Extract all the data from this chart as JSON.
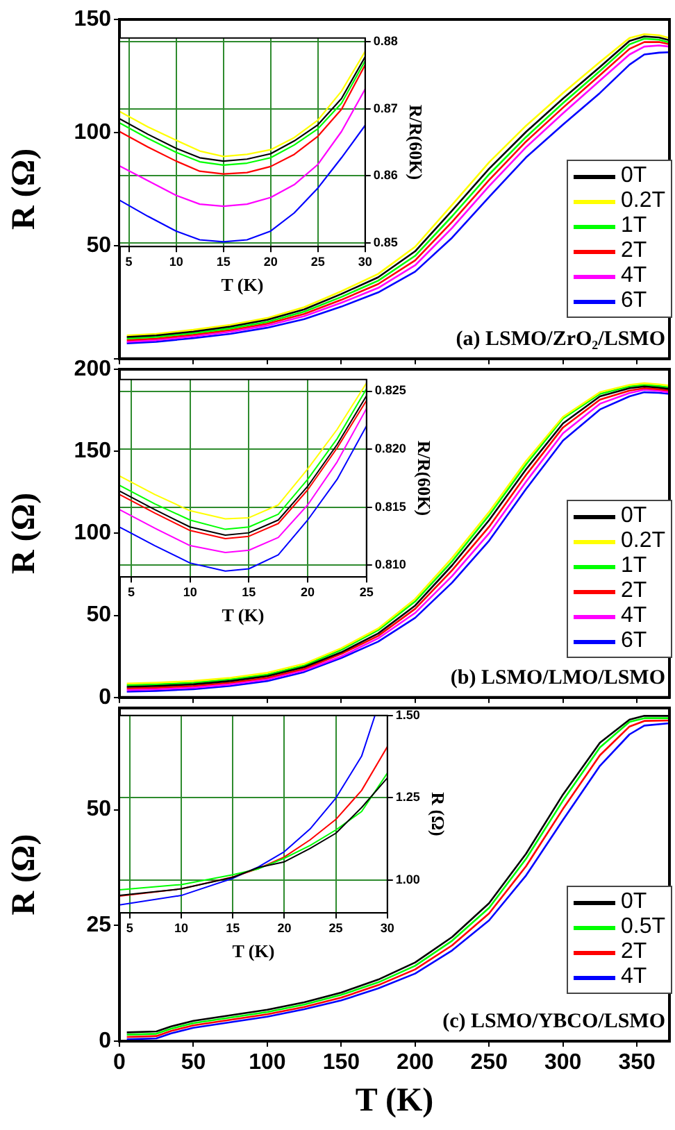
{
  "chart_data": [
    {
      "type": "line",
      "ylabel": "R (Ω)",
      "legend": "right",
      "tick_labels": "y",
      "annotations": [
        "(a) LSMO/ZrO₂/LSMO"
      ],
      "xlim": [
        0,
        372
      ],
      "xticks": [
        {
          "value": 0,
          "label": null
        },
        {
          "value": 50,
          "label": null
        },
        {
          "value": 100,
          "label": null
        },
        {
          "value": 150,
          "label": null
        },
        {
          "value": 200,
          "label": null
        },
        {
          "value": 250,
          "label": null
        },
        {
          "value": 300,
          "label": null
        },
        {
          "value": 350,
          "label": null
        }
      ],
      "ylim": [
        0,
        150
      ],
      "yticks": [
        {
          "value": 0,
          "label": null
        },
        50,
        100,
        150
      ],
      "x": [
        5,
        25,
        50,
        75,
        100,
        125,
        150,
        175,
        200,
        225,
        250,
        275,
        300,
        325,
        345,
        355,
        365,
        372
      ],
      "series": [
        {
          "name": "0T",
          "color": "#000000",
          "values": [
            9.6,
            10.3,
            12,
            14.2,
            17.2,
            21.8,
            28.6,
            36,
            47.5,
            65.5,
            84,
            100.3,
            115,
            129,
            140.5,
            142.5,
            142,
            140.8
          ]
        },
        {
          "name": "0.2T",
          "color": "#ffff00",
          "values": [
            10.3,
            11,
            12.8,
            15,
            18,
            22.8,
            29.8,
            37.5,
            49.5,
            68,
            86.8,
            103,
            117.5,
            131.2,
            141.8,
            143.5,
            143,
            141.8
          ]
        },
        {
          "name": "1T",
          "color": "#00ff00",
          "values": [
            8.9,
            9.6,
            11.3,
            13.4,
            16.3,
            20.8,
            27.3,
            34.5,
            45.5,
            63,
            81.5,
            98,
            113,
            127.2,
            139,
            141.5,
            141,
            139.8
          ]
        },
        {
          "name": "2T",
          "color": "#ff0000",
          "values": [
            8.2,
            8.9,
            10.6,
            12.7,
            15.5,
            19.8,
            26,
            33,
            43.5,
            60.5,
            79,
            96,
            111,
            125.4,
            137,
            140,
            140,
            139
          ]
        },
        {
          "name": "4T",
          "color": "#ff00ff",
          "values": [
            7.5,
            8.2,
            9.9,
            11.9,
            14.7,
            18.8,
            24.7,
            31.3,
            41.3,
            57.8,
            76.3,
            93.5,
            108.5,
            123,
            134.5,
            138,
            138.5,
            138
          ]
        },
        {
          "name": "6T",
          "color": "#0000ff",
          "values": [
            6.8,
            7.5,
            9.1,
            11,
            13.7,
            17.5,
            23,
            29.3,
            38.5,
            53.5,
            71.5,
            89,
            103.5,
            117.5,
            130,
            134.5,
            135.3,
            135.5
          ]
        }
      ]
    },
    {
      "type": "line",
      "xlabel": "T (K)",
      "y2label": "R/R(60K)",
      "grid": true,
      "xlim": [
        4,
        30
      ],
      "xticks": [
        5,
        10,
        15,
        20,
        25,
        30
      ],
      "y2lim": [
        0.8495,
        0.8805
      ],
      "y2ticks": [
        0.85,
        0.86,
        0.87,
        0.88
      ],
      "x": [
        4,
        7,
        10,
        12.5,
        15,
        17.5,
        20,
        22.5,
        25,
        27.5,
        30
      ],
      "series": [
        {
          "color": "#ffff00",
          "axis": "y2",
          "values": [
            0.8696,
            0.8673,
            0.8653,
            0.8637,
            0.8629,
            0.8632,
            0.8639,
            0.8657,
            0.8683,
            0.8726,
            0.8785
          ]
        },
        {
          "color": "#000000",
          "axis": "y2",
          "values": [
            0.8685,
            0.8662,
            0.8641,
            0.8627,
            0.8622,
            0.8625,
            0.8633,
            0.8652,
            0.8676,
            0.8715,
            0.8777
          ]
        },
        {
          "color": "#00ff00",
          "axis": "y2",
          "values": [
            0.8679,
            0.8656,
            0.8635,
            0.8621,
            0.8616,
            0.8619,
            0.8627,
            0.8646,
            0.867,
            0.8708,
            0.8771
          ]
        },
        {
          "color": "#ff0000",
          "axis": "y2",
          "values": [
            0.8666,
            0.8643,
            0.8622,
            0.8607,
            0.8603,
            0.8605,
            0.8614,
            0.8632,
            0.8659,
            0.8699,
            0.8765
          ]
        },
        {
          "color": "#ff00ff",
          "axis": "y2",
          "values": [
            0.8615,
            0.8593,
            0.8571,
            0.8558,
            0.8555,
            0.8558,
            0.8568,
            0.8587,
            0.8617,
            0.8666,
            0.8729
          ]
        },
        {
          "color": "#0000ff",
          "axis": "y2",
          "values": [
            0.8564,
            0.854,
            0.8518,
            0.8505,
            0.8502,
            0.8505,
            0.8518,
            0.8545,
            0.8582,
            0.8627,
            0.8675
          ]
        }
      ]
    },
    {
      "type": "line",
      "ylabel": "R (Ω)",
      "legend": "right",
      "tick_labels": "y",
      "annotations": [
        "(b) LSMO/LMO/LSMO"
      ],
      "xlim": [
        0,
        372
      ],
      "xticks": [
        {
          "value": 0,
          "label": null
        },
        {
          "value": 50,
          "label": null
        },
        {
          "value": 100,
          "label": null
        },
        {
          "value": 150,
          "label": null
        },
        {
          "value": 200,
          "label": null
        },
        {
          "value": 250,
          "label": null
        },
        {
          "value": 300,
          "label": null
        },
        {
          "value": 350,
          "label": null
        }
      ],
      "ylim": [
        0,
        200
      ],
      "yticks": [
        0,
        50,
        100,
        150,
        200
      ],
      "x": [
        5,
        25,
        50,
        75,
        100,
        125,
        150,
        175,
        200,
        225,
        250,
        275,
        300,
        325,
        345,
        355,
        365,
        372
      ],
      "series": [
        {
          "name": "0T",
          "color": "#000000",
          "values": [
            6.5,
            7,
            8,
            10,
            13,
            18.5,
            27.5,
            39,
            56,
            80.5,
            108,
            139,
            167,
            183.5,
            188.5,
            189.5,
            188.8,
            188
          ]
        },
        {
          "name": "0.2T",
          "color": "#ffff00",
          "values": [
            8.5,
            9,
            10,
            12,
            15,
            20.5,
            30,
            42,
            60,
            85,
            113,
            144,
            171,
            186,
            190.5,
            191.5,
            190.8,
            190
          ]
        },
        {
          "name": "1T",
          "color": "#00ff00",
          "values": [
            7.5,
            8,
            9,
            11,
            14,
            19.5,
            29,
            41,
            58.5,
            83,
            111,
            142,
            170,
            185,
            189.5,
            190.5,
            189.8,
            189
          ]
        },
        {
          "name": "2T",
          "color": "#ff0000",
          "values": [
            5.5,
            6,
            7,
            9,
            12,
            17.5,
            26.5,
            37.5,
            54,
            77.5,
            104,
            135.5,
            164.5,
            181.5,
            187,
            188.5,
            187.8,
            187
          ]
        },
        {
          "name": "4T",
          "color": "#ff00ff",
          "values": [
            4.5,
            5,
            6,
            8,
            11,
            16.5,
            25,
            36,
            51.5,
            74,
            100,
            131.5,
            161,
            179,
            185.5,
            187.5,
            186.8,
            186
          ]
        },
        {
          "name": "6T",
          "color": "#0000ff",
          "values": [
            3.5,
            4,
            5,
            7,
            10,
            15.5,
            24,
            34,
            48.5,
            70,
            95.5,
            127,
            156.5,
            175.5,
            183.5,
            186,
            185.6,
            185
          ]
        }
      ]
    },
    {
      "type": "line",
      "xlabel": "T (K)",
      "y2label": "R/R(60K)",
      "grid": true,
      "xlim": [
        4,
        25
      ],
      "xticks": [
        5,
        10,
        15,
        20,
        25
      ],
      "y2lim": [
        0.809,
        0.826
      ],
      "y2ticks": [
        {
          "value": 0.81,
          "label": "0.810"
        },
        {
          "value": 0.815,
          "label": "0.815"
        },
        {
          "value": 0.82,
          "label": "0.820"
        },
        {
          "value": 0.825,
          "label": "0.825"
        }
      ],
      "x": [
        4,
        7,
        10,
        13,
        15,
        17.5,
        20,
        22.5,
        25
      ],
      "series": [
        {
          "color": "#ffff00",
          "axis": "y2",
          "values": [
            0.8177,
            0.8161,
            0.8147,
            0.814,
            0.8141,
            0.8152,
            0.8183,
            0.8217,
            0.8257
          ]
        },
        {
          "color": "#00ff00",
          "axis": "y2",
          "values": [
            0.8169,
            0.8153,
            0.8139,
            0.8131,
            0.8133,
            0.8144,
            0.8174,
            0.8209,
            0.8252
          ]
        },
        {
          "color": "#000000",
          "axis": "y2",
          "values": [
            0.8164,
            0.8148,
            0.8133,
            0.8126,
            0.8128,
            0.8139,
            0.8168,
            0.8204,
            0.8246
          ]
        },
        {
          "color": "#ff0000",
          "axis": "y2",
          "values": [
            0.8161,
            0.8145,
            0.813,
            0.8123,
            0.8125,
            0.8136,
            0.8165,
            0.8201,
            0.8242
          ]
        },
        {
          "color": "#ff00ff",
          "axis": "y2",
          "values": [
            0.8148,
            0.8132,
            0.8117,
            0.8111,
            0.8113,
            0.8124,
            0.8152,
            0.8189,
            0.8235
          ]
        },
        {
          "color": "#0000ff",
          "axis": "y2",
          "values": [
            0.8133,
            0.8117,
            0.8102,
            0.8095,
            0.8097,
            0.8109,
            0.8139,
            0.8174,
            0.822
          ]
        }
      ]
    },
    {
      "type": "line",
      "xlabel": "T (K)",
      "ylabel": "R (Ω)",
      "legend": "right",
      "annotations": [
        "(c) LSMO/YBCO/LSMO"
      ],
      "xlim": [
        0,
        372
      ],
      "xticks": [
        0,
        50,
        100,
        150,
        200,
        250,
        300,
        350
      ],
      "ylim": [
        0,
        72
      ],
      "yticks": [
        0,
        25,
        50
      ],
      "x": [
        5,
        25,
        35,
        50,
        75,
        100,
        125,
        150,
        175,
        200,
        225,
        250,
        275,
        300,
        325,
        345,
        355,
        372
      ],
      "series": [
        {
          "name": "0T",
          "color": "#000000",
          "values": [
            1.9,
            2.1,
            3.2,
            4.4,
            5.6,
            6.8,
            8.4,
            10.5,
            13.3,
            17,
            22.5,
            29.8,
            40.5,
            53.3,
            64.5,
            69.5,
            70.3,
            70.3
          ]
        },
        {
          "name": "0.5T",
          "color": "#00ff00",
          "values": [
            1.4,
            1.6,
            2.7,
            3.9,
            5.1,
            6.3,
            7.9,
            10,
            12.7,
            16.3,
            21.7,
            28.8,
            39.4,
            52,
            63.5,
            69,
            69.8,
            69.8
          ]
        },
        {
          "name": "2T",
          "color": "#ff0000",
          "values": [
            0.9,
            1.1,
            2.2,
            3.4,
            4.6,
            5.8,
            7.4,
            9.4,
            12.1,
            15.5,
            20.7,
            27.6,
            37.8,
            50.2,
            61.8,
            68,
            69.2,
            69.3
          ]
        },
        {
          "name": "4T",
          "color": "#0000ff",
          "values": [
            0.4,
            0.6,
            1.7,
            2.9,
            4.1,
            5.3,
            6.9,
            8.8,
            11.4,
            14.6,
            19.6,
            26.1,
            35.8,
            47.8,
            59.5,
            66.3,
            68.2,
            68.7
          ]
        }
      ]
    },
    {
      "type": "line",
      "xlabel": "T (K)",
      "y2label": "R (Ω)",
      "grid": true,
      "xlim": [
        4,
        30
      ],
      "xticks": [
        5,
        10,
        15,
        20,
        25,
        30
      ],
      "y2lim": [
        0.9,
        1.5
      ],
      "y2ticks": [
        {
          "value": 1,
          "label": "1.00"
        },
        {
          "value": 1.25,
          "label": "1.25"
        },
        {
          "value": 1.5,
          "label": "1.50"
        }
      ],
      "x": [
        4,
        10,
        15,
        17.5,
        20,
        22.5,
        25,
        27.5,
        30
      ],
      "series": [
        {
          "color": "#000000",
          "axis": "y2",
          "values": [
            0.953,
            0.973,
            1.008,
            1.038,
            1.055,
            1.096,
            1.142,
            1.22,
            1.31
          ]
        },
        {
          "color": "#00ff00",
          "axis": "y2",
          "values": [
            0.97,
            0.986,
            1.016,
            1.034,
            1.066,
            1.105,
            1.152,
            1.208,
            1.325
          ]
        },
        {
          "color": "#ff0000",
          "axis": "y2",
          "values": [
            0.951,
            0.973,
            1.009,
            1.035,
            1.07,
            1.122,
            1.184,
            1.272,
            1.405
          ]
        },
        {
          "color": "#0000ff",
          "axis": "y2",
          "x": [
            4,
            10,
            15,
            17.5,
            20,
            22.5,
            25,
            27.5,
            28.8
          ],
          "values": [
            0.924,
            0.953,
            1.005,
            1.04,
            1.086,
            1.155,
            1.249,
            1.376,
            1.5
          ]
        }
      ]
    }
  ]
}
